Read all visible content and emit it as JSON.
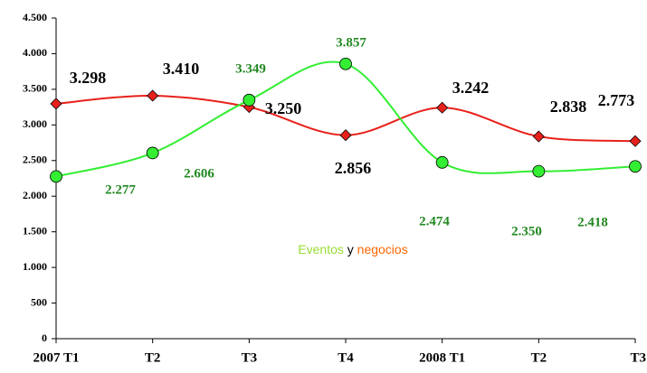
{
  "chart_data": {
    "type": "line",
    "categories": [
      "2007 T1",
      "T2",
      "T3",
      "T4",
      "2008 T1",
      "T2",
      "T3"
    ],
    "series": [
      {
        "name": "negocios",
        "color": "#e8211b",
        "marker": "diamond",
        "values": [
          3298,
          3410,
          3250,
          2856,
          3242,
          2838,
          2773
        ],
        "value_labels": [
          "3.298",
          "3.410",
          "3.250",
          "2.856",
          "3.242",
          "2.838",
          "2.773"
        ]
      },
      {
        "name": "Eventos",
        "color": "#33ee33",
        "marker": "circle",
        "values": [
          2277,
          2606,
          3349,
          3857,
          2474,
          2350,
          2418
        ],
        "value_labels": [
          "2.277",
          "2.606",
          "3.349",
          "3.857",
          "2.474",
          "2.350",
          "2.418"
        ]
      }
    ],
    "legend_joiner": "y",
    "ylim": [
      0,
      4500
    ],
    "yticks": [
      0,
      500,
      {
        "value": 1000,
        "label": "1.000"
      },
      {
        "value": 1500,
        "label": "1.500"
      },
      {
        "value": 2000,
        "label": "2.000"
      },
      {
        "value": 2500,
        "label": "2.500"
      },
      {
        "value": 3000,
        "label": "3.000"
      },
      {
        "value": 3500,
        "label": "3.500"
      },
      {
        "value": 4000,
        "label": "4.000"
      },
      {
        "value": 4500,
        "label": "4.500"
      }
    ],
    "smooth": true
  }
}
